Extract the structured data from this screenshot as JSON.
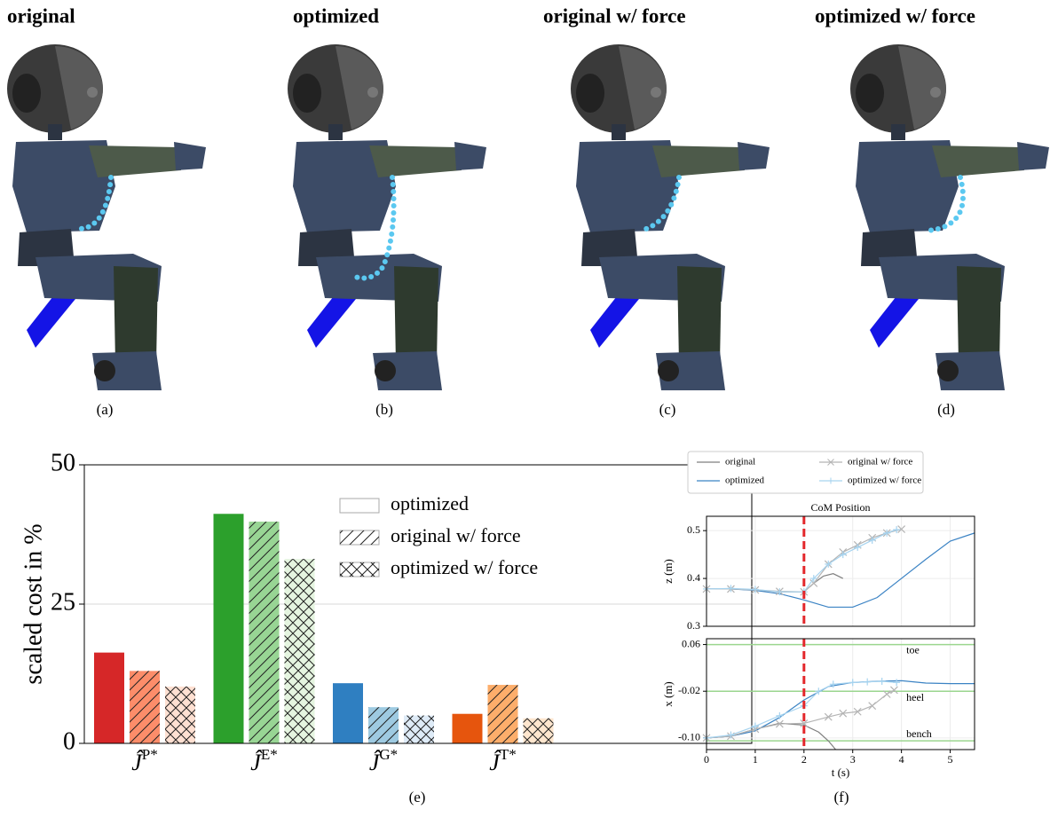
{
  "panels": [
    {
      "title": "original",
      "caption": "(a)"
    },
    {
      "title": "optimized",
      "caption": "(b)"
    },
    {
      "title": "original w/ force",
      "caption": "(c)"
    },
    {
      "title": "optimized w/ force",
      "caption": "(d)"
    }
  ],
  "chart_data": [
    {
      "type": "bar",
      "caption": "(e)",
      "ylabel": "scaled cost in %",
      "category_symbol": "Ĵ",
      "categories": [
        "P*",
        "E*",
        "G*",
        "T*"
      ],
      "ylim": [
        0,
        50
      ],
      "yticks": [
        0,
        25,
        50
      ],
      "grid": true,
      "series": [
        {
          "colors": [
            "#d62728",
            "#2ca02c",
            "#2f7fc1",
            "#e6550d"
          ],
          "values": [
            16.3,
            41.2,
            10.8,
            5.3
          ]
        },
        {
          "name": "optimized",
          "colors": [
            "#fc8d6a",
            "#98d594",
            "#9ecae1",
            "#fdae6b"
          ],
          "values": [
            13,
            39.8,
            6.5,
            10.5
          ],
          "hatch": "/",
          "legend_hatch": "none"
        },
        {
          "name": "original w/ force",
          "colors": [
            "#fee0d2",
            "#e5f5e0",
            "#deebf7",
            "#fee6ce"
          ],
          "values": [
            10.2,
            33.1,
            5,
            4.5
          ],
          "hatch": "x",
          "legend_hatch": "/"
        },
        {
          "name": "optimized w/ force",
          "legend_hatch": "x"
        }
      ]
    },
    {
      "type": "line",
      "title": "CoM Position",
      "ylabel": "z (m)",
      "xlim": [
        0,
        5.5
      ],
      "xticks": [
        0,
        1,
        2,
        3,
        4,
        5
      ],
      "ylim": [
        0.3,
        0.53
      ],
      "yticks": [
        0.3,
        0.4,
        0.5
      ],
      "grid": true,
      "vline": 2,
      "vline_color": "#e3272b",
      "series": [
        {
          "name": "original",
          "color": "#7f7f7f",
          "x": [
            0,
            0.5,
            1,
            1.5,
            2,
            2.2,
            2.4,
            2.6,
            2.8
          ],
          "values": [
            0.378,
            0.378,
            0.376,
            0.372,
            0.372,
            0.39,
            0.405,
            0.41,
            0.4
          ]
        },
        {
          "name": "optimized",
          "color": "#3b83c4",
          "x": [
            0,
            0.5,
            1,
            1.5,
            2,
            2.5,
            3,
            3.5,
            4,
            4.5,
            5,
            5.5
          ],
          "values": [
            0.378,
            0.378,
            0.375,
            0.368,
            0.355,
            0.34,
            0.34,
            0.36,
            0.4,
            0.44,
            0.478,
            0.495
          ]
        },
        {
          "name": "original w/ force",
          "color": "#b4b4b4",
          "marker": "x",
          "x": [
            0,
            0.5,
            1,
            1.5,
            2,
            2.2,
            2.5,
            2.8,
            3.1,
            3.4,
            3.7,
            4.0
          ],
          "values": [
            0.378,
            0.378,
            0.376,
            0.373,
            0.372,
            0.39,
            0.43,
            0.455,
            0.47,
            0.485,
            0.495,
            0.503
          ]
        },
        {
          "name": "optimized w/ force",
          "color": "#a6d3ef",
          "marker": "+",
          "x": [
            0,
            0.5,
            1,
            1.5,
            2,
            2.2,
            2.5,
            2.8,
            3.1,
            3.4,
            3.7,
            3.9
          ],
          "values": [
            0.378,
            0.379,
            0.377,
            0.372,
            0.372,
            0.4,
            0.43,
            0.45,
            0.465,
            0.48,
            0.495,
            0.502
          ]
        }
      ]
    },
    {
      "type": "line",
      "caption": "(f)",
      "ylabel": "x (m)",
      "xlabel": "t (s)",
      "xlim": [
        0,
        5.5
      ],
      "xticks": [
        0,
        1,
        2,
        3,
        4,
        5
      ],
      "ylim": [
        -0.12,
        0.07
      ],
      "yticks": [
        0.06,
        -0.02,
        {
          "value": -0.1,
          "label": "-0.10"
        }
      ],
      "grid": true,
      "vline": 2,
      "vline_color": "#e3272b",
      "hline_color": "#9bd68f",
      "hlines": [
        {
          "value": 0.06,
          "label": "toe"
        },
        {
          "value": -0.02,
          "label": "heel"
        },
        {
          "value": -0.105,
          "label": "bench"
        }
      ],
      "series": [
        {
          "color": "#7f7f7f",
          "x": [
            0,
            0.5,
            1,
            1.5,
            2,
            2.3,
            2.5,
            2.65
          ],
          "values": [
            -0.1,
            -0.097,
            -0.085,
            -0.075,
            -0.078,
            -0.09,
            -0.105,
            -0.12
          ]
        },
        {
          "color": "#3b83c4",
          "x": [
            0,
            0.5,
            1,
            1.5,
            2,
            2.5,
            3,
            3.5,
            4,
            4.5,
            5,
            5.5
          ],
          "values": [
            -0.1,
            -0.097,
            -0.088,
            -0.065,
            -0.035,
            -0.012,
            -0.005,
            -0.003,
            -0.002,
            -0.006,
            -0.007,
            -0.007
          ]
        },
        {
          "color": "#b4b4b4",
          "marker": "x",
          "x": [
            0,
            0.5,
            1,
            1.5,
            2,
            2.5,
            2.8,
            3.1,
            3.4,
            3.7,
            3.85
          ],
          "values": [
            -0.1,
            -0.097,
            -0.085,
            -0.076,
            -0.075,
            -0.064,
            -0.058,
            -0.055,
            -0.045,
            -0.025,
            -0.018
          ]
        },
        {
          "color": "#a6d3ef",
          "marker": "+",
          "x": [
            0,
            0.5,
            1,
            1.5,
            2,
            2.3,
            2.6,
            3,
            3.3,
            3.6,
            3.9
          ],
          "values": [
            -0.1,
            -0.095,
            -0.08,
            -0.062,
            -0.045,
            -0.02,
            -0.008,
            -0.005,
            -0.004,
            -0.003,
            -0.005
          ]
        }
      ]
    }
  ]
}
